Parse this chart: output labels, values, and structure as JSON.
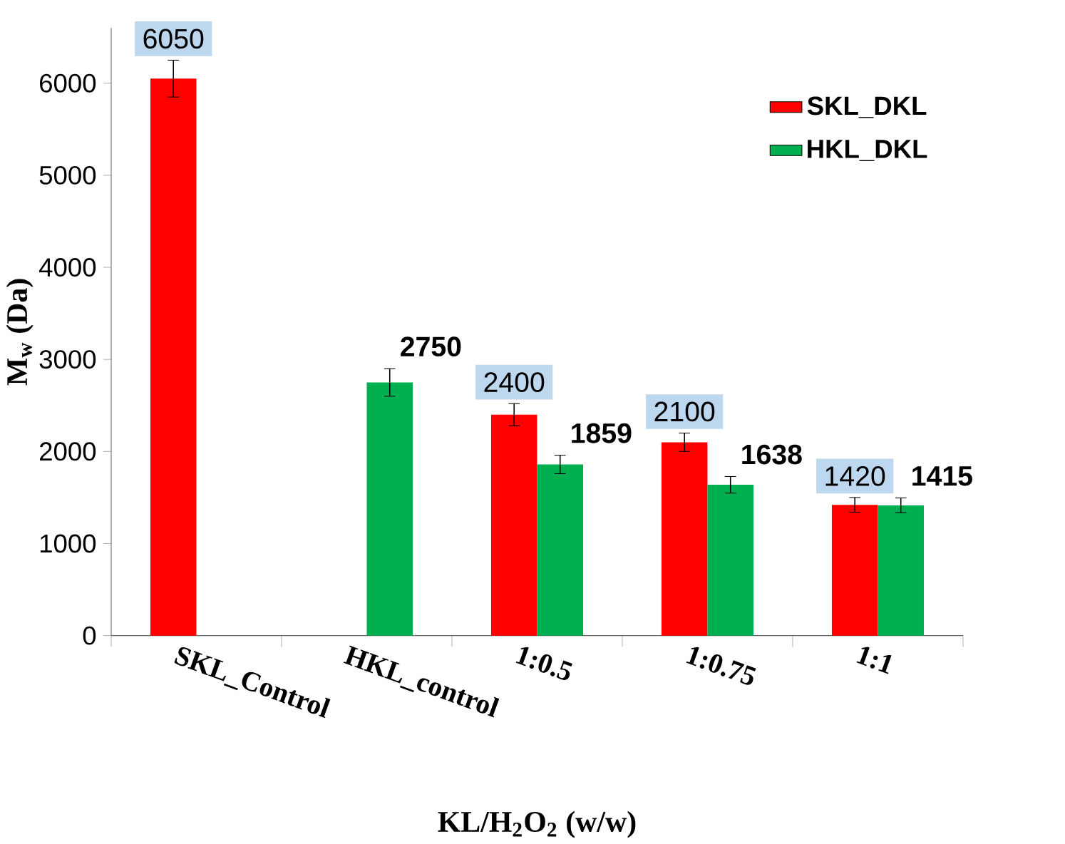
{
  "chart_data": {
    "type": "bar",
    "xlabel": "KL/H$_{2}$O$_{2}$ (w/w)",
    "ylabel": "M$_{w}$ (Da)",
    "categories": [
      "SKL_Control",
      "HKL_control",
      "1:0.5",
      "1:0.75",
      "1:1"
    ],
    "series": [
      {
        "name": "SKL_DKL",
        "color": "#ff0000",
        "values": [
          6050,
          null,
          2400,
          2100,
          1420
        ],
        "errors": [
          200,
          null,
          120,
          100,
          80
        ],
        "value_labels": [
          "6050",
          null,
          "2400",
          "2100",
          "1420"
        ]
      },
      {
        "name": "HKL_DKL",
        "color": "#00b050",
        "values": [
          null,
          2750,
          1859,
          1638,
          1415
        ],
        "errors": [
          null,
          150,
          100,
          90,
          80
        ],
        "value_labels": [
          null,
          "2750",
          "1859",
          "1638",
          "1415"
        ]
      }
    ],
    "ylim": [
      0,
      6600
    ],
    "yticks": [
      0,
      1000,
      2000,
      3000,
      4000,
      5000,
      6000
    ],
    "legend": "top right",
    "grid": false
  }
}
